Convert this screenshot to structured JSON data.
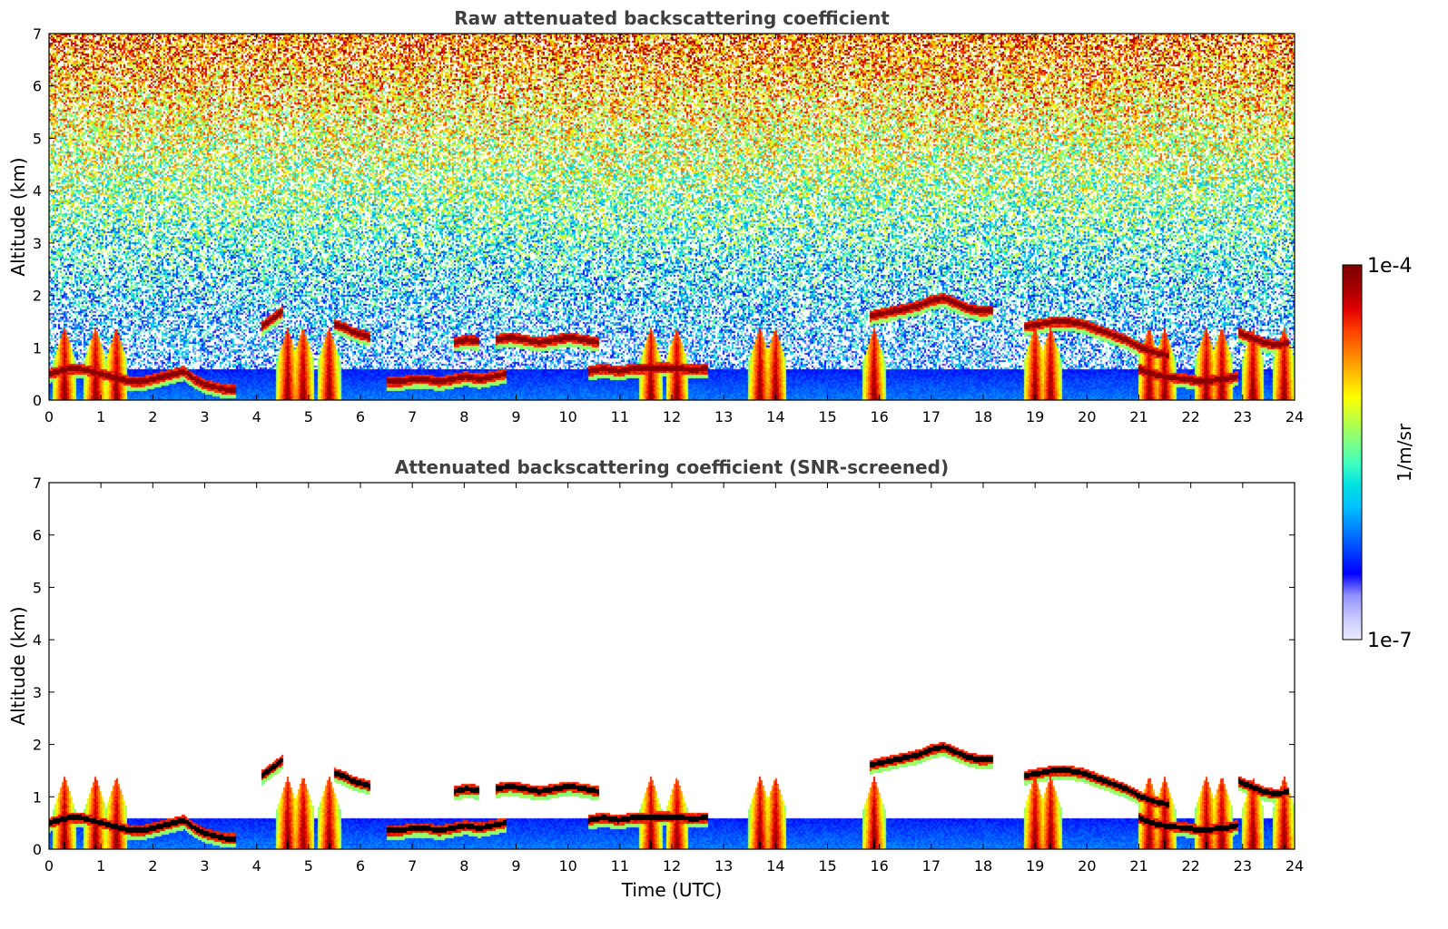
{
  "chart_data": [
    {
      "type": "heatmap",
      "title": "Raw attenuated backscattering coefficient",
      "xlabel": "",
      "ylabel": "Altitude (km)",
      "xlim": [
        0,
        24
      ],
      "ylim": [
        0,
        7
      ],
      "xticks": [
        "0",
        "1",
        "2",
        "3",
        "4",
        "5",
        "6",
        "7",
        "8",
        "9",
        "10",
        "11",
        "12",
        "13",
        "14",
        "15",
        "16",
        "17",
        "18",
        "19",
        "20",
        "21",
        "22",
        "23",
        "24"
      ],
      "yticks": [
        "0",
        "1",
        "2",
        "3",
        "4",
        "5",
        "6",
        "7"
      ],
      "cloud_layers": [
        {
          "t0": 0.0,
          "t1": 3.6,
          "alt": [
            0.5,
            0.55,
            0.6,
            0.6,
            0.55,
            0.5,
            0.45,
            0.4,
            0.35,
            0.35,
            0.4,
            0.45,
            0.5,
            0.55,
            0.4,
            0.3,
            0.25,
            0.2,
            0.2
          ]
        },
        {
          "t0": 4.1,
          "t1": 4.5,
          "alt": [
            1.4,
            1.5,
            1.6,
            1.7
          ]
        },
        {
          "t0": 5.5,
          "t1": 6.2,
          "alt": [
            1.45,
            1.4,
            1.3,
            1.25,
            1.2
          ]
        },
        {
          "t0": 6.5,
          "t1": 8.8,
          "alt": [
            0.35,
            0.35,
            0.4,
            0.4,
            0.35,
            0.4,
            0.45,
            0.4,
            0.45,
            0.5
          ]
        },
        {
          "t0": 7.8,
          "t1": 8.3,
          "alt": [
            1.1,
            1.15,
            1.12
          ]
        },
        {
          "t0": 8.6,
          "t1": 10.6,
          "alt": [
            1.15,
            1.2,
            1.15,
            1.1,
            1.15,
            1.2,
            1.15,
            1.1
          ]
        },
        {
          "t0": 10.4,
          "t1": 12.7,
          "alt": [
            0.55,
            0.6,
            0.55,
            0.6,
            0.6,
            0.62,
            0.6,
            0.58,
            0.6
          ]
        },
        {
          "t0": 15.8,
          "t1": 18.2,
          "alt": [
            1.6,
            1.65,
            1.7,
            1.75,
            1.8,
            1.9,
            1.95,
            1.85,
            1.75,
            1.7,
            1.72
          ]
        },
        {
          "t0": 18.8,
          "t1": 21.6,
          "alt": [
            1.4,
            1.45,
            1.5,
            1.5,
            1.45,
            1.35,
            1.25,
            1.15,
            1.0,
            0.9,
            0.85
          ]
        },
        {
          "t0": 21.0,
          "t1": 22.9,
          "alt": [
            0.6,
            0.5,
            0.45,
            0.42,
            0.4,
            0.35,
            0.38,
            0.4,
            0.45
          ]
        },
        {
          "t0": 22.9,
          "t1": 23.9,
          "alt": [
            1.3,
            1.2,
            1.1,
            1.05,
            1.1
          ]
        }
      ],
      "vertical_plumes": [
        0.3,
        0.9,
        1.3,
        4.6,
        4.9,
        5.4,
        11.6,
        12.1,
        13.7,
        14.0,
        15.9,
        19.0,
        19.3,
        21.2,
        21.5,
        22.3,
        22.6,
        23.2,
        23.8
      ]
    },
    {
      "type": "heatmap",
      "title": "Attenuated backscattering coefficient (SNR-screened)",
      "xlabel": "Time (UTC)",
      "ylabel": "Altitude (km)",
      "xlim": [
        0,
        24
      ],
      "ylim": [
        0,
        7
      ],
      "xticks": [
        "0",
        "1",
        "2",
        "3",
        "4",
        "5",
        "6",
        "7",
        "8",
        "9",
        "10",
        "11",
        "12",
        "13",
        "14",
        "15",
        "16",
        "17",
        "18",
        "19",
        "20",
        "21",
        "22",
        "23",
        "24"
      ],
      "yticks": [
        "0",
        "1",
        "2",
        "3",
        "4",
        "5",
        "6",
        "7"
      ]
    }
  ],
  "colorbar": {
    "label": "1/m/sr",
    "max_label": "1e-4",
    "min_label": "1e-7",
    "colormap": [
      "#ebebff",
      "#c8c8ff",
      "#9090ff",
      "#0000ff",
      "#0040ff",
      "#0080ff",
      "#00c0ff",
      "#00e0e0",
      "#40ffc0",
      "#80ff80",
      "#c0ff40",
      "#ffff00",
      "#ffc000",
      "#ff8000",
      "#ff4000",
      "#e00000",
      "#a00000",
      "#800000"
    ]
  }
}
